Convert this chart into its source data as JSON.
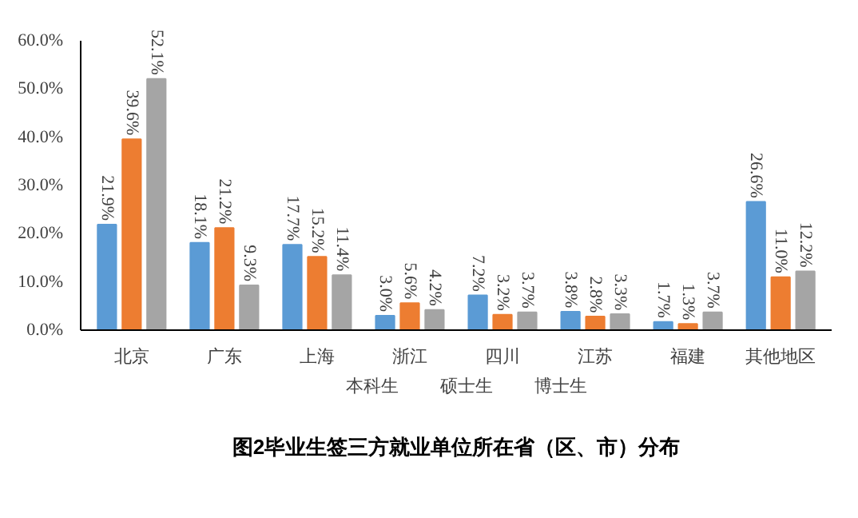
{
  "chart_data": {
    "type": "bar",
    "title": "图2毕业生签三方就业单位所在省（区、市）分布",
    "categories": [
      "北京",
      "广东",
      "上海",
      "浙江",
      "四川",
      "江苏",
      "福建",
      "其他地区"
    ],
    "series": [
      {
        "name": "本科生",
        "color": "#5b9bd5",
        "values": [
          21.9,
          18.1,
          17.7,
          3.0,
          7.2,
          3.8,
          1.7,
          26.6
        ],
        "value_labels": [
          "21.9%",
          "18.1%",
          "17.7%",
          "3.0%",
          "7.2%",
          "3.8%",
          "1.7%",
          "26.6%"
        ]
      },
      {
        "name": "硕士生",
        "color": "#ed7d31",
        "values": [
          39.6,
          21.2,
          15.2,
          5.6,
          3.2,
          2.8,
          1.3,
          11.0
        ],
        "value_labels": [
          "39.6%",
          "21.2%",
          "15.2%",
          "5.6%",
          "3.2%",
          "2.8%",
          "1.3%",
          "11.0%"
        ]
      },
      {
        "name": "博士生",
        "color": "#a5a5a5",
        "values": [
          52.1,
          9.3,
          11.4,
          4.2,
          3.7,
          3.3,
          3.7,
          12.2
        ],
        "value_labels": [
          "52.1%",
          "9.3%",
          "11.4%",
          "4.2%",
          "3.7%",
          "3.3%",
          "3.7%",
          "12.2%"
        ]
      }
    ],
    "ylim": [
      0,
      60
    ],
    "yticks": [
      {
        "value": 0,
        "label": "0.0%"
      },
      {
        "value": 10,
        "label": "10.0%"
      },
      {
        "value": 20,
        "label": "20.0%"
      },
      {
        "value": 30,
        "label": "30.0%"
      },
      {
        "value": 40,
        "label": "40.0%"
      },
      {
        "value": 50,
        "label": "50.0%"
      },
      {
        "value": 60,
        "label": "60.0%"
      }
    ],
    "grid": false,
    "legend": "bottom"
  }
}
